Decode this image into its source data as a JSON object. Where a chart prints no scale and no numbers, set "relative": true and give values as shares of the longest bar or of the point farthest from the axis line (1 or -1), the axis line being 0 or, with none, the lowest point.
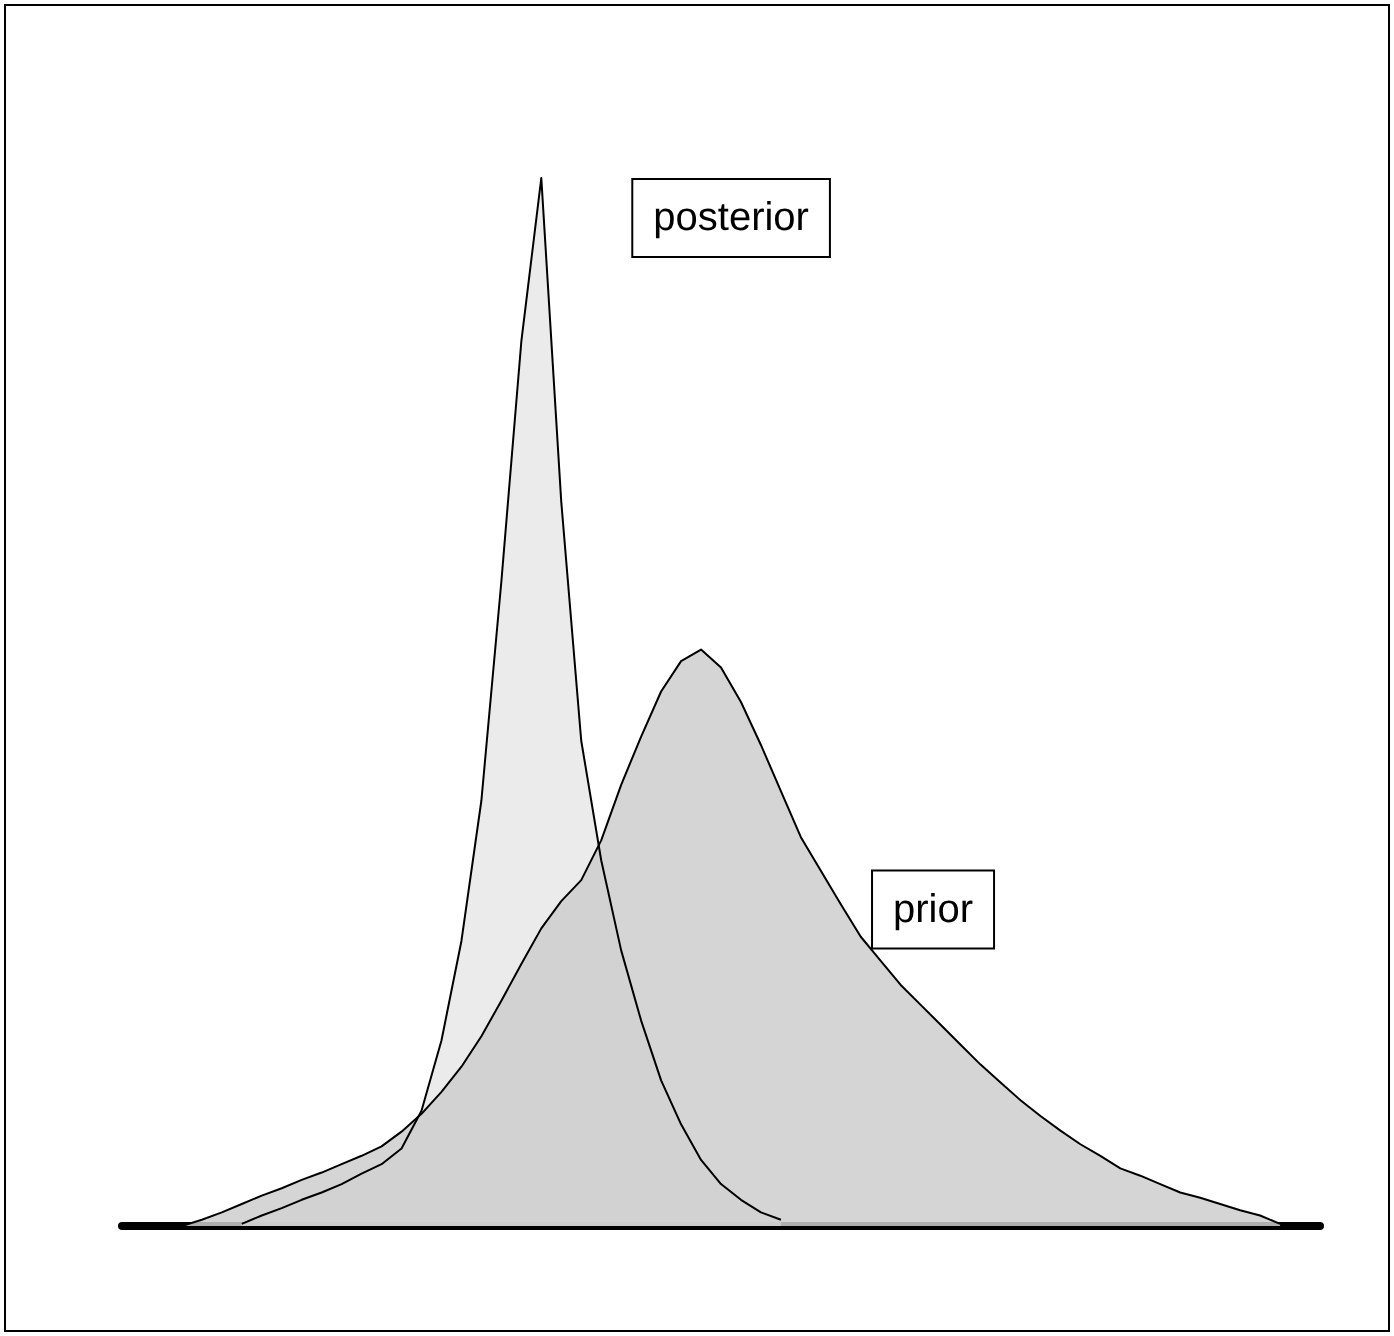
{
  "chart_data": {
    "type": "area",
    "relative": true,
    "legend": false,
    "grid": false,
    "marker": "none",
    "categories": [
      null,
      null,
      null,
      null,
      null,
      null,
      null,
      null,
      null,
      null,
      null,
      null,
      null,
      null,
      null,
      null,
      null,
      null,
      null,
      null,
      null,
      null,
      null,
      null,
      null,
      null,
      null,
      null,
      null,
      null,
      null,
      null,
      null,
      null,
      null,
      null,
      null,
      null,
      null,
      null,
      null,
      null,
      null,
      null,
      null,
      null,
      null,
      null,
      null,
      null,
      null,
      null,
      null,
      null,
      null,
      null,
      null,
      null,
      null,
      null,
      null
    ],
    "series": [
      {
        "name": "posterior",
        "color": "#e8e8e8",
        "values": [
          null,
          null,
          null,
          null,
          null,
          null,
          0.002,
          0.01,
          0.017,
          0.025,
          0.032,
          0.04,
          0.05,
          0.059,
          0.074,
          0.11,
          0.177,
          0.272,
          0.406,
          0.615,
          0.844,
          1.0,
          0.691,
          0.463,
          0.349,
          0.263,
          0.196,
          0.139,
          0.097,
          0.063,
          0.04,
          0.025,
          0.013,
          0.006,
          null,
          null,
          null,
          null,
          null,
          null,
          null,
          null,
          null,
          null,
          null,
          null,
          null,
          null,
          null,
          null,
          null,
          null,
          null,
          null,
          null,
          null,
          null,
          null,
          null,
          null,
          null
        ]
      },
      {
        "name": "prior",
        "color": "#cfcecf",
        "values": [
          null,
          null,
          null,
          0,
          0.006,
          0.013,
          0.021,
          0.029,
          0.036,
          0.044,
          0.051,
          0.059,
          0.067,
          0.076,
          0.09,
          0.107,
          0.128,
          0.152,
          0.181,
          0.215,
          0.25,
          0.284,
          0.31,
          0.33,
          0.368,
          0.421,
          0.467,
          0.51,
          0.539,
          0.55,
          0.533,
          0.5,
          0.459,
          0.415,
          0.371,
          0.339,
          0.307,
          0.276,
          0.253,
          0.23,
          0.211,
          0.192,
          0.173,
          0.154,
          0.137,
          0.12,
          0.105,
          0.091,
          0.078,
          0.067,
          0.055,
          0.048,
          0.04,
          0.032,
          0.027,
          0.021,
          0.015,
          0.01,
          0.002,
          null,
          null
        ]
      }
    ]
  }
}
